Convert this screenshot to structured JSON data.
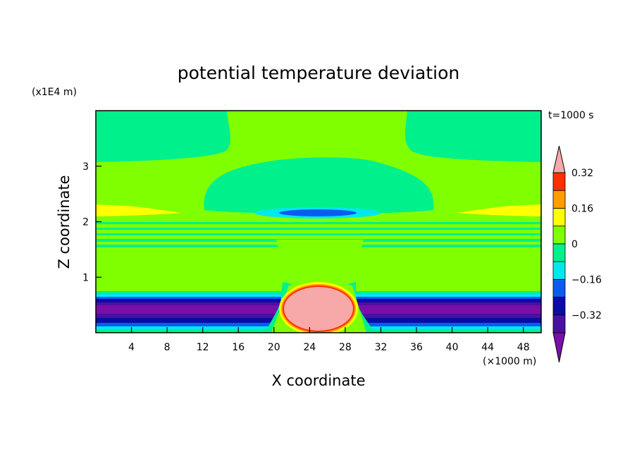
{
  "chart_data": {
    "type": "heatmap",
    "title": "potential temperature deviation",
    "time_label": "t=1000 s",
    "xlabel": "X coordinate",
    "ylabel": "Z coordinate",
    "x_unit": "(×1000 m)",
    "y_unit": "(x1E4 m)",
    "xlim": [
      0,
      50
    ],
    "ylim": [
      0,
      4
    ],
    "x_ticks": [
      "4",
      "8",
      "12",
      "16",
      "20",
      "24",
      "28",
      "32",
      "36",
      "40",
      "44",
      "48"
    ],
    "y_ticks": [
      "1",
      "2",
      "3"
    ],
    "colorbar": {
      "labels": [
        "0.32",
        "0.16",
        "0",
        "−0.16",
        "−0.32"
      ],
      "levels": [
        -0.4,
        -0.32,
        -0.24,
        -0.16,
        -0.08,
        0,
        0.08,
        0.16,
        0.24,
        0.32,
        0.4
      ],
      "colors": [
        "#7b0ea8",
        "#4a10a0",
        "#0b0ba8",
        "#0a5cf0",
        "#00e8ee",
        "#00f08c",
        "#80ff00",
        "#ffff00",
        "#ff9c00",
        "#ff2f00",
        "#f7a8a8"
      ]
    },
    "features": [
      {
        "name": "warm bubble",
        "x_center": 25.5,
        "z_center": 0.4,
        "value": "> 0.4"
      },
      {
        "name": "cold layer",
        "z_range": [
          0.1,
          0.8
        ],
        "value": "-0.4 to -0.16"
      },
      {
        "name": "upper cold lens",
        "x_center": 25,
        "z_center": 2.15,
        "value": "-0.24"
      }
    ]
  }
}
